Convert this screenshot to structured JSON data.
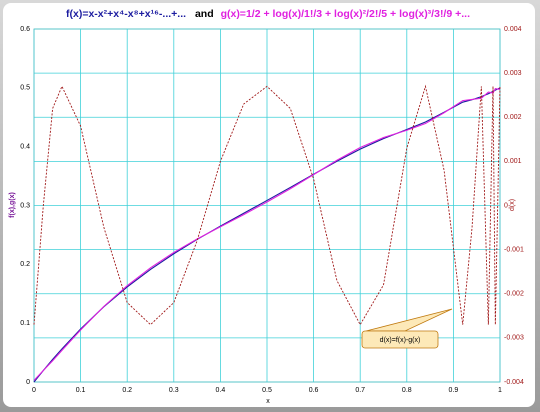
{
  "chart_data": {
    "type": "line",
    "title": [
      "f(x)=x-x²+x⁴-x⁸+x¹⁶-...+...",
      "and",
      "g(x)=1/2 + log(x)/1!/3 + log(x)²/2!/5 + log(x)³/3!/9 +..."
    ],
    "xlabel": "x",
    "ylabel": "f(x),g(x)",
    "y2label": "d(x)",
    "annotation": "d(x)=f(x)-g(x)",
    "x": [
      0,
      0.02,
      0.04,
      0.06,
      0.1,
      0.15,
      0.2,
      0.25,
      0.3,
      0.35,
      0.4,
      0.45,
      0.5,
      0.55,
      0.6,
      0.65,
      0.7,
      0.75,
      0.8,
      0.84,
      0.88,
      0.92,
      0.94,
      0.96,
      0.975,
      0.985,
      0.99,
      1
    ],
    "series": [
      {
        "color": "#1c1ca0",
        "values": [
          0,
          0.0196,
          0.0384,
          0.0564,
          0.0901,
          0.128,
          0.1616,
          0.1914,
          0.218,
          0.2423,
          0.2649,
          0.2868,
          0.3086,
          0.3307,
          0.3531,
          0.3752,
          0.3958,
          0.4137,
          0.4292,
          0.442,
          0.4585,
          0.4756,
          0.4798,
          0.485,
          0.49,
          0.494,
          0.496,
          0.5
        ]
      },
      {
        "color": "#e020e0",
        "values": [
          0.0027,
          0.0196,
          0.0362,
          0.0537,
          0.0883,
          0.1285,
          0.1638,
          0.1941,
          0.2202,
          0.2431,
          0.2639,
          0.2845,
          0.3059,
          0.3285,
          0.3525,
          0.3769,
          0.3985,
          0.4155,
          0.4279,
          0.4393,
          0.4577,
          0.4783,
          0.4803,
          0.4823,
          0.4927,
          0.4913,
          0.4987,
          0.4973
        ]
      },
      {
        "color": "#a01818",
        "axis": "y2",
        "dashed": true,
        "values": [
          -0.0027,
          0,
          0.0022,
          0.0027,
          0.0018,
          -0.0005,
          -0.0022,
          -0.0027,
          -0.0022,
          -0.0008,
          0.001,
          0.0023,
          0.0027,
          0.0022,
          0.0006,
          -0.0017,
          -0.0027,
          -0.0018,
          0.0013,
          0.0027,
          0.0008,
          -0.0027,
          -0.0005,
          0.0027,
          -0.0027,
          0.0027,
          -0.0027,
          0.0027
        ]
      }
    ],
    "xlim": [
      0,
      1
    ],
    "xticks": [
      0,
      0.1,
      0.2,
      0.3,
      0.4,
      0.5,
      0.6,
      0.7,
      0.8,
      0.9,
      1
    ],
    "ylim": [
      0,
      0.6
    ],
    "yticks": [
      0,
      0.1,
      0.2,
      0.3,
      0.4,
      0.5,
      0.6
    ],
    "y2lim": [
      -0.004,
      0.004
    ],
    "y2ticks": [
      -0.004,
      -0.003,
      -0.002,
      -0.001,
      0,
      0.001,
      0.002,
      0.003,
      0.004
    ],
    "grid": "y2",
    "grid_color": "#3fd0d8"
  }
}
